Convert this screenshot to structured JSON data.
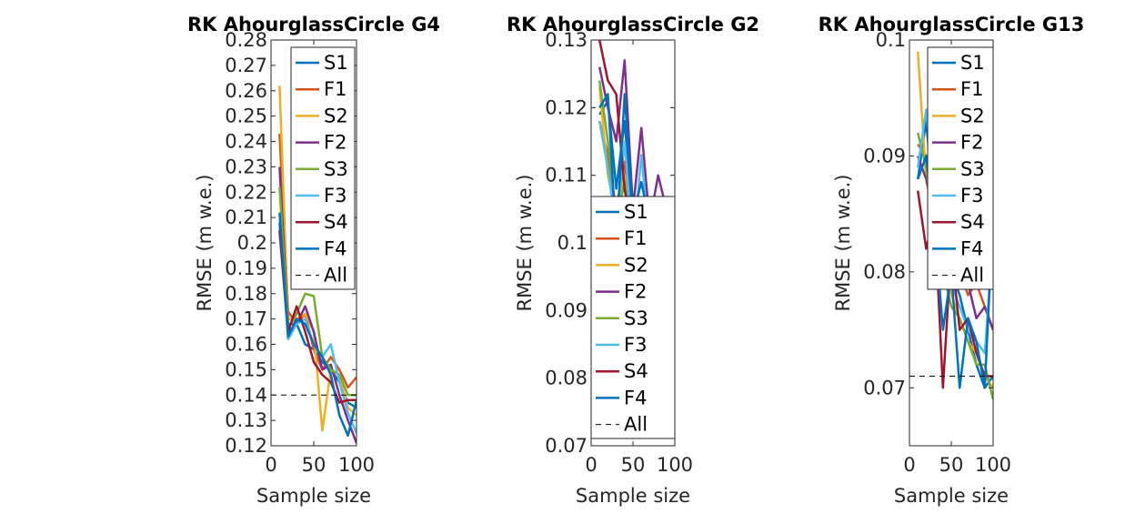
{
  "chart_data": [
    {
      "type": "line",
      "title": "RK AhourglassCircle G4",
      "xlabel": "Sample size",
      "ylabel": "RMSE (m w.e.)",
      "xlim": [
        0,
        100
      ],
      "ylim": [
        0.12,
        0.28
      ],
      "xticks": [
        "0",
        "50",
        "100"
      ],
      "yticks": [
        "0.12",
        "0.13",
        "0.14",
        "0.15",
        "0.16",
        "0.17",
        "0.18",
        "0.19",
        "0.2",
        "0.21",
        "0.22",
        "0.23",
        "0.24",
        "0.25",
        "0.26",
        "0.27",
        "0.28"
      ],
      "legend_position": "top-right",
      "x": [
        10,
        20,
        30,
        40,
        50,
        60,
        70,
        80,
        90,
        100
      ],
      "series": [
        {
          "name": "S1",
          "color": "#0072BD",
          "values": [
            0.208,
            0.165,
            0.168,
            0.16,
            0.158,
            0.153,
            0.15,
            0.145,
            0.137,
            0.135
          ]
        },
        {
          "name": "F1",
          "color": "#D95319",
          "values": [
            0.243,
            0.173,
            0.168,
            0.172,
            0.158,
            0.15,
            0.155,
            0.15,
            0.143,
            0.147
          ]
        },
        {
          "name": "S2",
          "color": "#EDB120",
          "values": [
            0.262,
            0.17,
            0.17,
            0.172,
            0.165,
            0.126,
            0.15,
            0.148,
            0.135,
            0.132
          ]
        },
        {
          "name": "F2",
          "color": "#7E2F8E",
          "values": [
            0.23,
            0.168,
            0.168,
            0.175,
            0.165,
            0.15,
            0.152,
            0.14,
            0.13,
            0.121
          ]
        },
        {
          "name": "S3",
          "color": "#77AC30",
          "values": [
            0.222,
            0.166,
            0.172,
            0.18,
            0.179,
            0.155,
            0.15,
            0.148,
            0.14,
            0.14
          ]
        },
        {
          "name": "F3",
          "color": "#4DBEEE",
          "values": [
            0.205,
            0.162,
            0.168,
            0.17,
            0.16,
            0.155,
            0.16,
            0.145,
            0.133,
            0.125
          ]
        },
        {
          "name": "S4",
          "color": "#A2142F",
          "values": [
            0.205,
            0.165,
            0.175,
            0.165,
            0.153,
            0.148,
            0.145,
            0.137,
            0.138,
            0.138
          ]
        },
        {
          "name": "F4",
          "color": "#0072BD",
          "values": [
            0.212,
            0.163,
            0.17,
            0.168,
            0.16,
            0.155,
            0.148,
            0.132,
            0.124,
            0.138
          ]
        }
      ],
      "all_value": 0.14,
      "all_label": "All"
    },
    {
      "type": "line",
      "title": "RK AhourglassCircle G2",
      "xlabel": "Sample size",
      "ylabel": "RMSE (m w.e.)",
      "xlim": [
        0,
        100
      ],
      "ylim": [
        0.07,
        0.13
      ],
      "xticks": [
        "0",
        "50",
        "100"
      ],
      "yticks": [
        "0.07",
        "0.08",
        "0.09",
        "0.1",
        "0.11",
        "0.12",
        "0.13"
      ],
      "legend_position": "bottom-left",
      "x": [
        10,
        20,
        30,
        40,
        50,
        60,
        70,
        80,
        90,
        100
      ],
      "series": [
        {
          "name": "S1",
          "color": "#0072BD",
          "values": [
            0.119,
            0.121,
            0.108,
            0.118,
            0.102,
            0.106,
            0.1,
            0.09,
            0.082,
            0.082
          ]
        },
        {
          "name": "F1",
          "color": "#D95319",
          "values": [
            0.118,
            0.113,
            0.105,
            0.112,
            0.1,
            0.103,
            0.098,
            0.093,
            0.085,
            0.08
          ]
        },
        {
          "name": "S2",
          "color": "#EDB120",
          "values": [
            0.123,
            0.11,
            0.104,
            0.11,
            0.096,
            0.1,
            0.095,
            0.087,
            0.081,
            0.077
          ]
        },
        {
          "name": "F2",
          "color": "#7E2F8E",
          "values": [
            0.126,
            0.12,
            0.115,
            0.127,
            0.105,
            0.117,
            0.103,
            0.11,
            0.105,
            0.105
          ]
        },
        {
          "name": "S3",
          "color": "#77AC30",
          "values": [
            0.124,
            0.115,
            0.103,
            0.109,
            0.101,
            0.103,
            0.096,
            0.086,
            0.09,
            0.088
          ]
        },
        {
          "name": "F3",
          "color": "#4DBEEE",
          "values": [
            0.118,
            0.111,
            0.102,
            0.115,
            0.099,
            0.113,
            0.1,
            0.097,
            0.093,
            0.098
          ]
        },
        {
          "name": "S4",
          "color": "#A2142F",
          "values": [
            0.13,
            0.124,
            0.122,
            0.108,
            0.1,
            0.099,
            0.095,
            0.09,
            0.085,
            0.083
          ]
        },
        {
          "name": "F4",
          "color": "#0072BD",
          "values": [
            0.12,
            0.122,
            0.1,
            0.122,
            0.104,
            0.109,
            0.103,
            0.102,
            0.095,
            0.098
          ]
        }
      ],
      "all_value": null,
      "all_label": "All"
    },
    {
      "type": "line",
      "title": "RK AhourglassCircle G13",
      "xlabel": "Sample size",
      "ylabel": "RMSE (m w.e.)",
      "xlim": [
        0,
        100
      ],
      "ylim": [
        0.065,
        0.1
      ],
      "xticks": [
        "0",
        "50",
        "100"
      ],
      "yticks": [
        "0.07",
        "0.08",
        "0.09",
        "0.1"
      ],
      "legend_position": "top-right",
      "x": [
        10,
        20,
        30,
        40,
        50,
        60,
        70,
        80,
        90,
        100
      ],
      "series": [
        {
          "name": "S1",
          "color": "#0072BD",
          "values": [
            0.088,
            0.093,
            0.085,
            0.082,
            0.08,
            0.078,
            0.075,
            0.072,
            0.07,
            0.071
          ]
        },
        {
          "name": "F1",
          "color": "#D95319",
          "values": [
            0.091,
            0.09,
            0.086,
            0.083,
            0.082,
            0.08,
            0.078,
            0.079,
            0.077,
            0.075
          ]
        },
        {
          "name": "S2",
          "color": "#EDB120",
          "values": [
            0.099,
            0.088,
            0.084,
            0.081,
            0.078,
            0.076,
            0.074,
            0.073,
            0.071,
            0.07
          ]
        },
        {
          "name": "F2",
          "color": "#7E2F8E",
          "values": [
            0.09,
            0.088,
            0.085,
            0.083,
            0.081,
            0.08,
            0.079,
            0.076,
            0.077,
            0.075
          ]
        },
        {
          "name": "S3",
          "color": "#77AC30",
          "values": [
            0.092,
            0.089,
            0.083,
            0.08,
            0.077,
            0.076,
            0.074,
            0.072,
            0.072,
            0.069
          ]
        },
        {
          "name": "F3",
          "color": "#4DBEEE",
          "values": [
            0.089,
            0.094,
            0.087,
            0.082,
            0.079,
            0.077,
            0.075,
            0.074,
            0.073,
            0.083
          ]
        },
        {
          "name": "S4",
          "color": "#A2142F",
          "values": [
            0.087,
            0.082,
            0.085,
            0.07,
            0.082,
            0.075,
            0.076,
            0.073,
            0.071,
            0.071
          ]
        },
        {
          "name": "F4",
          "color": "#0072BD",
          "values": [
            0.088,
            0.09,
            0.084,
            0.075,
            0.08,
            0.07,
            0.076,
            0.074,
            0.07,
            0.085
          ]
        }
      ],
      "all_value": 0.071,
      "all_label": "All"
    }
  ]
}
